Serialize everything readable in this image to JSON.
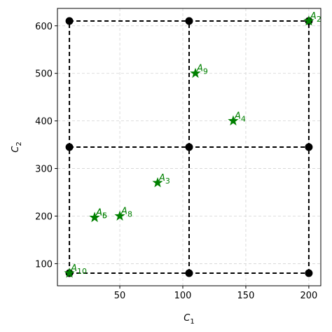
{
  "chart_data": {
    "type": "scatter",
    "x_label": "C",
    "x_label_sub": "1",
    "y_label": "C",
    "y_label_sub": "2",
    "xlim": [
      0.5,
      209.5
    ],
    "ylim": [
      53.5,
      636.5
    ],
    "xticks": [
      50,
      100,
      150,
      200
    ],
    "yticks": [
      100,
      200,
      300,
      400,
      500,
      600
    ],
    "grid": true,
    "grid_points": {
      "x": [
        10,
        105,
        200
      ],
      "y": [
        80,
        345,
        610
      ],
      "color": "#000000"
    },
    "color": "#008000",
    "points": [
      {
        "label": "A",
        "sub": "2",
        "x": 200,
        "y": 610
      },
      {
        "label": "A",
        "sub": "9",
        "x": 110,
        "y": 500
      },
      {
        "label": "A",
        "sub": "4",
        "x": 140,
        "y": 400
      },
      {
        "label": "A",
        "sub": "3",
        "x": 80,
        "y": 270
      },
      {
        "label": "A",
        "sub": "5",
        "x": 30,
        "y": 197
      },
      {
        "label": "A",
        "sub": "6",
        "x": 30,
        "y": 197
      },
      {
        "label": "A",
        "sub": "8",
        "x": 50,
        "y": 200
      },
      {
        "label": "A",
        "sub": "10",
        "x": 10,
        "y": 80
      }
    ]
  }
}
